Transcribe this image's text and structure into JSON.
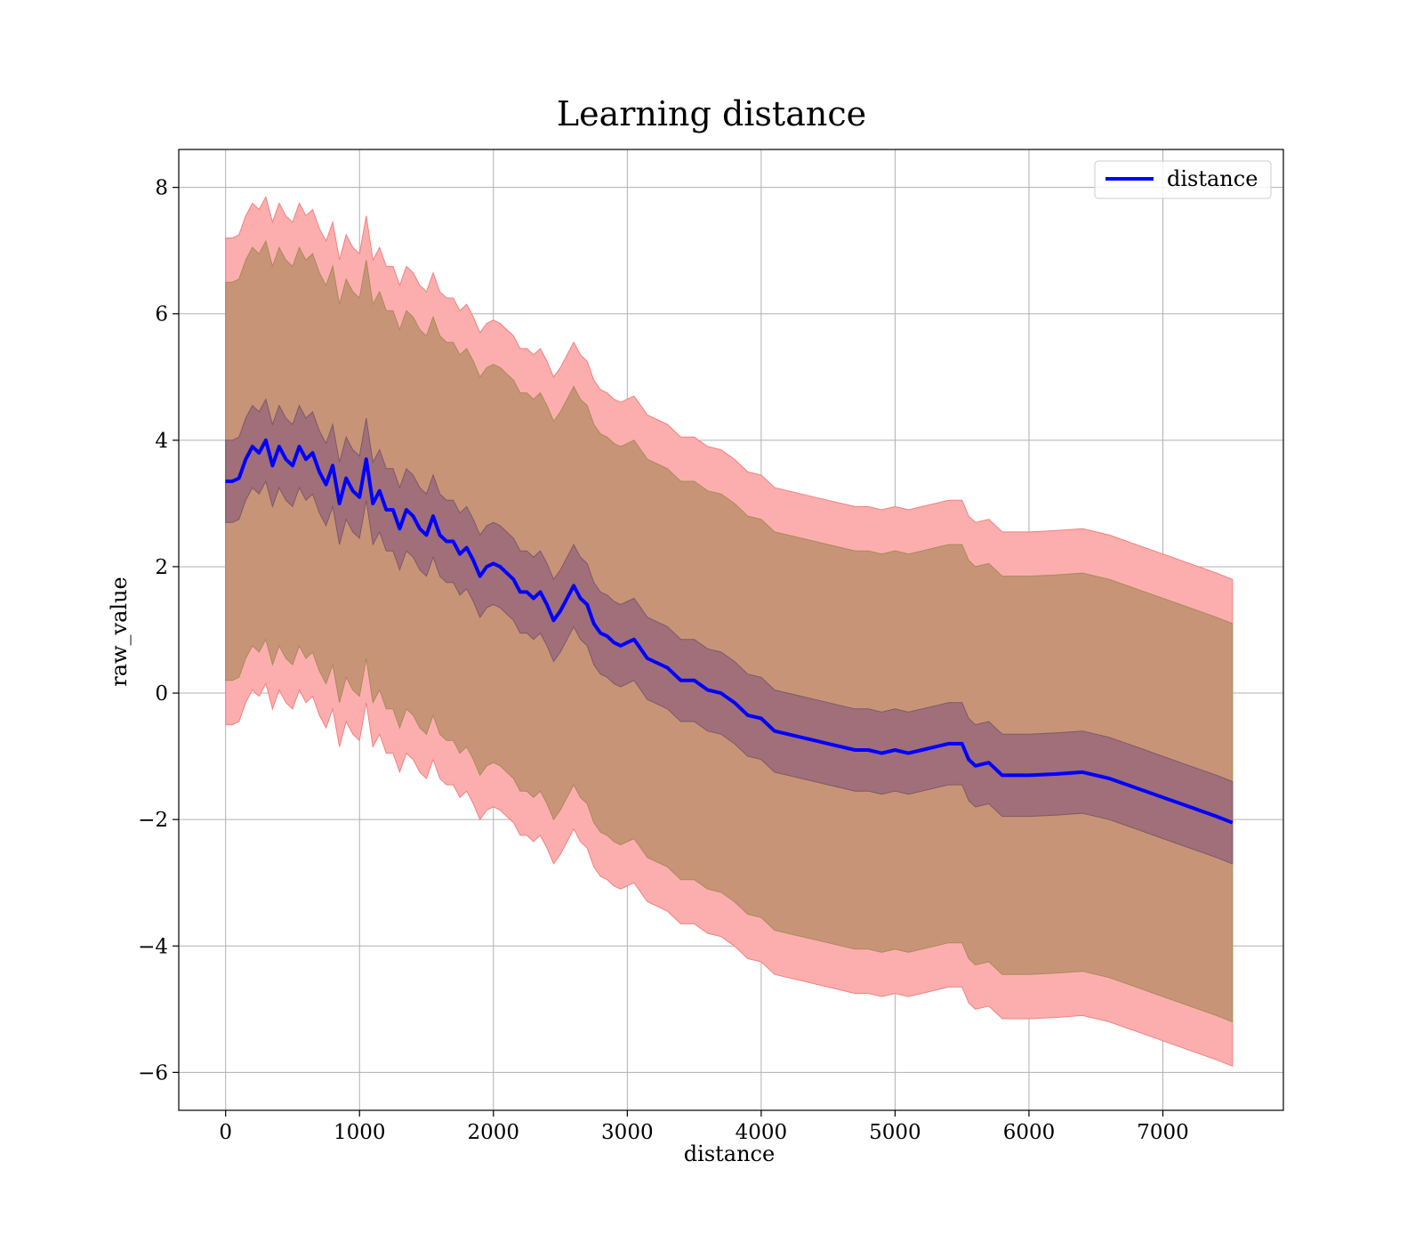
{
  "chart_data": {
    "type": "line",
    "title": "Learning distance",
    "xlabel": "distance",
    "ylabel": "raw_value",
    "xlim": [
      -350,
      7900
    ],
    "ylim": [
      -6.6,
      8.6
    ],
    "x_ticks": [
      0,
      1000,
      2000,
      3000,
      4000,
      5000,
      6000,
      7000
    ],
    "y_ticks": [
      -6,
      -4,
      -2,
      0,
      2,
      4,
      6,
      8
    ],
    "y_tick_labels": [
      "−6",
      "−4",
      "−2",
      "0",
      "2",
      "4",
      "6",
      "8"
    ],
    "grid": true,
    "legend": {
      "position": "top-right",
      "entries": [
        "distance"
      ]
    },
    "colors": {
      "line": "#0000ff",
      "band_outer": "#fcaeae",
      "band_middle": "#c89478",
      "band_inner": "#a06f7a",
      "grid": "#b0b0b0"
    },
    "series": [
      {
        "name": "distance",
        "x": [
          0,
          50,
          100,
          150,
          200,
          250,
          300,
          350,
          400,
          450,
          500,
          550,
          600,
          650,
          700,
          750,
          800,
          850,
          900,
          950,
          1000,
          1050,
          1100,
          1150,
          1200,
          1250,
          1300,
          1350,
          1400,
          1450,
          1500,
          1550,
          1600,
          1650,
          1700,
          1750,
          1800,
          1850,
          1900,
          1950,
          2000,
          2050,
          2100,
          2150,
          2200,
          2250,
          2300,
          2350,
          2400,
          2450,
          2500,
          2550,
          2600,
          2650,
          2700,
          2750,
          2800,
          2850,
          2900,
          2950,
          3000,
          3050,
          3100,
          3150,
          3200,
          3300,
          3400,
          3500,
          3600,
          3700,
          3800,
          3900,
          4000,
          4100,
          4200,
          4300,
          4400,
          4500,
          4600,
          4700,
          4800,
          4900,
          5000,
          5100,
          5200,
          5300,
          5400,
          5500,
          5550,
          5600,
          5700,
          5800,
          5900,
          6000,
          6200,
          6400,
          6600,
          6800,
          7000,
          7200,
          7400,
          7520
        ],
        "y": [
          3.35,
          3.35,
          3.4,
          3.7,
          3.9,
          3.8,
          4.0,
          3.6,
          3.9,
          3.7,
          3.6,
          3.9,
          3.7,
          3.8,
          3.5,
          3.3,
          3.6,
          3.0,
          3.4,
          3.2,
          3.1,
          3.7,
          3.0,
          3.2,
          2.9,
          2.9,
          2.6,
          2.9,
          2.8,
          2.6,
          2.5,
          2.8,
          2.5,
          2.4,
          2.4,
          2.2,
          2.3,
          2.1,
          1.85,
          2.0,
          2.05,
          2.0,
          1.9,
          1.8,
          1.6,
          1.6,
          1.5,
          1.6,
          1.4,
          1.15,
          1.3,
          1.5,
          1.7,
          1.5,
          1.4,
          1.1,
          0.95,
          0.9,
          0.8,
          0.75,
          0.8,
          0.85,
          0.7,
          0.55,
          0.5,
          0.4,
          0.2,
          0.2,
          0.05,
          0.0,
          -0.15,
          -0.35,
          -0.4,
          -0.6,
          -0.65,
          -0.7,
          -0.75,
          -0.8,
          -0.85,
          -0.9,
          -0.9,
          -0.95,
          -0.9,
          -0.95,
          -0.9,
          -0.85,
          -0.8,
          -0.8,
          -1.05,
          -1.15,
          -1.1,
          -1.3,
          -1.3,
          -1.3,
          -1.28,
          -1.25,
          -1.35,
          -1.5,
          -1.65,
          -1.8,
          -1.95,
          -2.05
        ],
        "band_inner_halfwidth": [
          0.65,
          0.65,
          0.65,
          0.65,
          0.65,
          0.65,
          0.65,
          0.65,
          0.65,
          0.65,
          0.65,
          0.65,
          0.65,
          0.65,
          0.65,
          0.65,
          0.65,
          0.65,
          0.65,
          0.65,
          0.65,
          0.65,
          0.65,
          0.65,
          0.65,
          0.65,
          0.65,
          0.65,
          0.65,
          0.65,
          0.65,
          0.65,
          0.65,
          0.65,
          0.65,
          0.65,
          0.65,
          0.65,
          0.65,
          0.65,
          0.65,
          0.65,
          0.65,
          0.65,
          0.65,
          0.65,
          0.65,
          0.65,
          0.65,
          0.65,
          0.65,
          0.65,
          0.65,
          0.65,
          0.65,
          0.65,
          0.65,
          0.65,
          0.65,
          0.65,
          0.65,
          0.65,
          0.65,
          0.65,
          0.65,
          0.65,
          0.65,
          0.65,
          0.65,
          0.65,
          0.65,
          0.65,
          0.65,
          0.65,
          0.65,
          0.65,
          0.65,
          0.65,
          0.65,
          0.65,
          0.65,
          0.65,
          0.65,
          0.65,
          0.65,
          0.65,
          0.65,
          0.65,
          0.65,
          0.65,
          0.65,
          0.65,
          0.65,
          0.65,
          0.65,
          0.65,
          0.65,
          0.65,
          0.65,
          0.65,
          0.65,
          0.65
        ],
        "band_middle_halfwidth": 3.15,
        "band_outer_halfwidth": 3.85
      }
    ]
  }
}
